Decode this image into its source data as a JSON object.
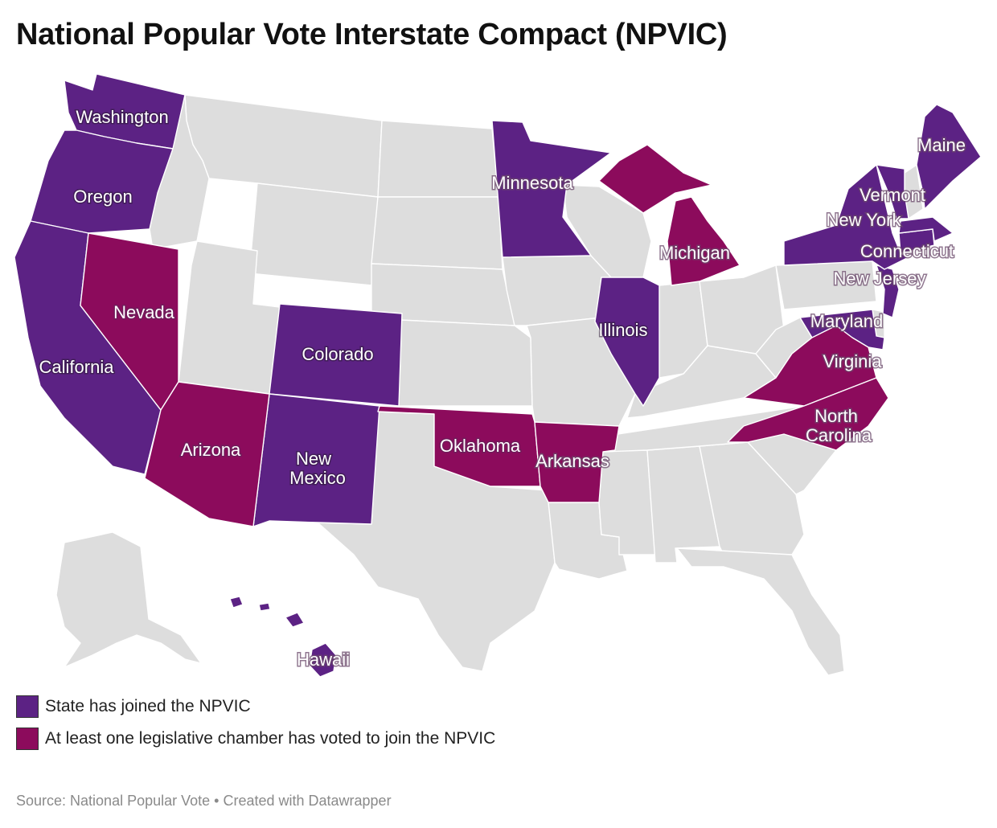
{
  "title": "National Popular Vote Interstate Compact (NPVIC)",
  "colors": {
    "joined": "#5c2284",
    "one_chamber": "#8c0b5c",
    "neutral": "#dddddd",
    "border": "#ffffff"
  },
  "legend": [
    {
      "label": "State has joined the NPVIC",
      "color": "#5c2284"
    },
    {
      "label": "At least one legislative chamber has voted to join the NPVIC",
      "color": "#8c0b5c"
    }
  ],
  "states": {
    "washington": {
      "label": "Washington",
      "status": "joined"
    },
    "oregon": {
      "label": "Oregon",
      "status": "joined"
    },
    "california": {
      "label": "California",
      "status": "joined"
    },
    "nevada": {
      "label": "Nevada",
      "status": "one_chamber"
    },
    "arizona": {
      "label": "Arizona",
      "status": "one_chamber"
    },
    "colorado": {
      "label": "Colorado",
      "status": "joined"
    },
    "new_mexico": {
      "label": "New Mexico",
      "label_lines": [
        "New",
        "Mexico"
      ],
      "status": "joined"
    },
    "minnesota": {
      "label": "Minnesota",
      "status": "joined"
    },
    "illinois": {
      "label": "Illinois",
      "status": "joined"
    },
    "michigan": {
      "label": "Michigan",
      "status": "one_chamber"
    },
    "oklahoma": {
      "label": "Oklahoma",
      "status": "one_chamber"
    },
    "arkansas": {
      "label": "Arkansas",
      "status": "one_chamber"
    },
    "virginia": {
      "label": "Virginia",
      "status": "one_chamber"
    },
    "north_carolina": {
      "label": "North Carolina",
      "label_lines": [
        "North",
        "Carolina"
      ],
      "status": "one_chamber"
    },
    "maryland": {
      "label": "Maryland",
      "status": "joined"
    },
    "new_jersey": {
      "label": "New Jersey",
      "status": "joined"
    },
    "connecticut": {
      "label": "Connecticut",
      "status": "joined"
    },
    "new_york": {
      "label": "New York",
      "status": "joined"
    },
    "vermont": {
      "label": "Vermont",
      "status": "joined"
    },
    "maine": {
      "label": "Maine",
      "status": "joined"
    },
    "hawaii": {
      "label": "Hawaii",
      "status": "joined"
    }
  },
  "source": "Source: National Popular Vote • Created with Datawrapper"
}
